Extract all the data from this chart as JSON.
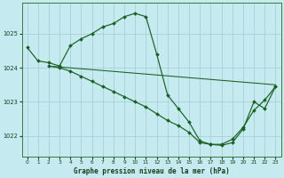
{
  "title": "Graphe pression niveau de la mer (hPa)",
  "bg_color": "#c5eaf0",
  "grid_color": "#a8d0dc",
  "line_color": "#1a6020",
  "xlim": [
    -0.5,
    23.5
  ],
  "ylim": [
    1021.4,
    1025.9
  ],
  "yticks": [
    1022,
    1023,
    1024,
    1025
  ],
  "xticks": [
    0,
    1,
    2,
    3,
    4,
    5,
    6,
    7,
    8,
    9,
    10,
    11,
    12,
    13,
    14,
    15,
    16,
    17,
    18,
    19,
    20,
    21,
    22,
    23
  ],
  "series": [
    {
      "x": [
        0,
        1,
        2,
        3,
        4,
        5,
        6,
        7,
        8,
        9,
        10,
        11,
        12,
        13,
        14,
        15,
        16,
        17,
        18,
        19,
        20,
        21,
        22,
        23
      ],
      "y": [
        1024.6,
        1024.2,
        1024.15,
        1024.05,
        1024.65,
        1024.85,
        1025.0,
        1025.2,
        1025.3,
        1025.5,
        1025.6,
        1025.5,
        1024.4,
        1023.2,
        1022.8,
        1022.4,
        1021.85,
        1021.75,
        1021.75,
        1021.9,
        1022.25,
        1022.75,
        1023.05,
        1023.45
      ],
      "marker": true
    },
    {
      "x": [
        2,
        23
      ],
      "y": [
        1024.05,
        1023.5
      ],
      "marker": false
    },
    {
      "x": [
        2,
        3,
        4,
        5,
        6,
        7,
        8,
        9,
        10,
        11,
        12,
        13,
        14,
        15,
        16,
        17,
        18,
        19,
        20,
        21,
        22,
        23
      ],
      "y": [
        1024.05,
        1024.0,
        1023.9,
        1023.75,
        1023.6,
        1023.45,
        1023.3,
        1023.15,
        1023.0,
        1022.85,
        1022.65,
        1022.45,
        1022.3,
        1022.1,
        1021.8,
        1021.75,
        1021.72,
        1021.8,
        1022.2,
        1023.0,
        1022.8,
        1023.45
      ],
      "marker": true
    }
  ]
}
